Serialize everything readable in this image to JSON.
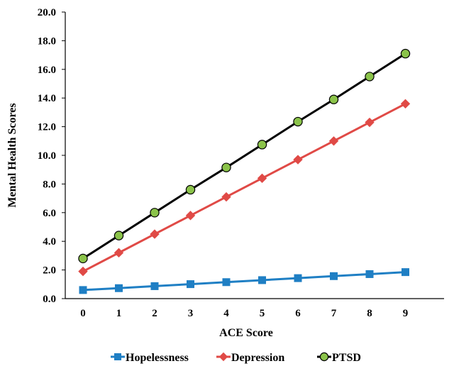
{
  "chart_data": {
    "type": "line",
    "xlabel": "ACE Score",
    "ylabel": "Mental Health Scores",
    "x": [
      0,
      1,
      2,
      3,
      4,
      5,
      6,
      7,
      8,
      9
    ],
    "ylim": [
      0,
      20
    ],
    "ytick_labels": [
      "0.0",
      "2.0",
      "4.0",
      "6.0",
      "8.0",
      "10.0",
      "12.0",
      "14.0",
      "16.0",
      "18.0",
      "20.0"
    ],
    "grid": false,
    "legend_position": "bottom",
    "series": [
      {
        "name": "Hopelessness",
        "marker": "square",
        "color": "#1f7fc4",
        "values": [
          0.6,
          0.73,
          0.87,
          1.01,
          1.15,
          1.29,
          1.43,
          1.57,
          1.71,
          1.85
        ]
      },
      {
        "name": "Depression",
        "marker": "diamond",
        "color": "#e04a46",
        "values": [
          1.9,
          3.2,
          4.5,
          5.8,
          7.1,
          8.4,
          9.7,
          11.0,
          12.3,
          13.6
        ]
      },
      {
        "name": "PTSD",
        "marker": "circle",
        "color": "#000000",
        "marker_fill": "#8bc34a",
        "values": [
          2.8,
          4.4,
          6.0,
          7.6,
          9.15,
          10.75,
          12.35,
          13.9,
          15.5,
          17.1
        ]
      }
    ]
  }
}
